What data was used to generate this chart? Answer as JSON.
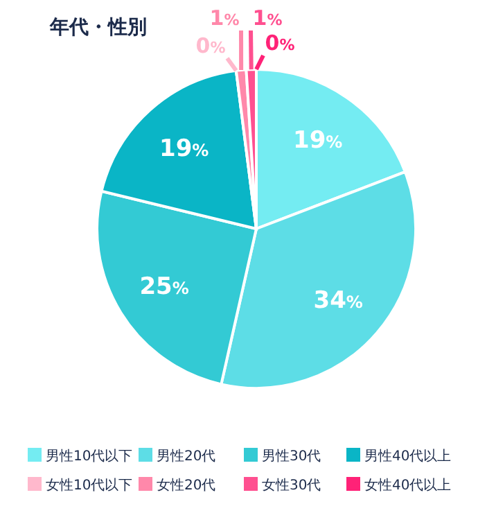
{
  "chart_data": {
    "type": "pie",
    "title": "年代・性別",
    "categories": [
      "男性10代以下",
      "男性20代",
      "男性30代",
      "男性40代以上",
      "女性10代以下",
      "女性20代",
      "女性30代",
      "女性40代以上"
    ],
    "values": [
      19,
      34,
      25,
      19,
      0,
      1,
      1,
      0
    ],
    "colors": [
      "#74ecf2",
      "#5ddde6",
      "#33cad4",
      "#0ab5c6",
      "#ffb8cc",
      "#ff88aa",
      "#ff5090",
      "#ff2277"
    ],
    "value_labels": [
      "19%",
      "34%",
      "25%",
      "19%",
      "0%",
      "1%",
      "1%",
      "0%"
    ],
    "legend": "bottom"
  }
}
